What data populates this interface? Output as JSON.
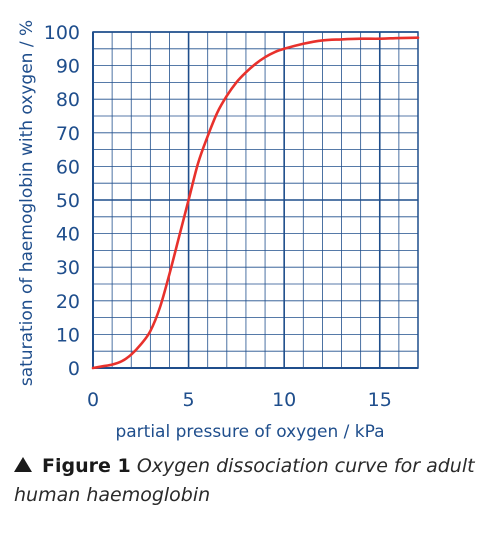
{
  "chart_data": {
    "type": "line",
    "xlabel": "partial pressure of oxygen / kPa",
    "ylabel": "saturation of haemoglobin with oxygen / %",
    "xlim": [
      0,
      17
    ],
    "ylim": [
      0,
      100
    ],
    "xticks": [
      0,
      5,
      10,
      15
    ],
    "yticks": [
      0,
      10,
      20,
      30,
      40,
      50,
      60,
      70,
      80,
      90,
      100
    ],
    "grid": true,
    "series": [
      {
        "color": "#e8312c",
        "x": [
          0,
          0.5,
          1,
          1.5,
          2,
          2.5,
          3,
          3.5,
          4,
          4.5,
          5,
          5.5,
          6,
          6.5,
          7,
          7.5,
          8,
          8.5,
          9,
          9.5,
          10,
          11,
          12,
          13,
          14,
          15,
          16,
          17
        ],
        "y": [
          0,
          0.5,
          1,
          2,
          4,
          7,
          11,
          18,
          28,
          39,
          50,
          61,
          69,
          76,
          81,
          85,
          88,
          90.5,
          92.5,
          94,
          95,
          96.5,
          97.5,
          97.8,
          98,
          98,
          98.2,
          98.3
        ]
      }
    ]
  },
  "caption": {
    "figure_label": "Figure 1",
    "text": "Oxygen dissociation curve for adult human haemoglobin"
  },
  "colors": {
    "axis_blue": "#1f4e8c",
    "grid_major": "#1f4e8c",
    "curve": "#e8312c"
  }
}
